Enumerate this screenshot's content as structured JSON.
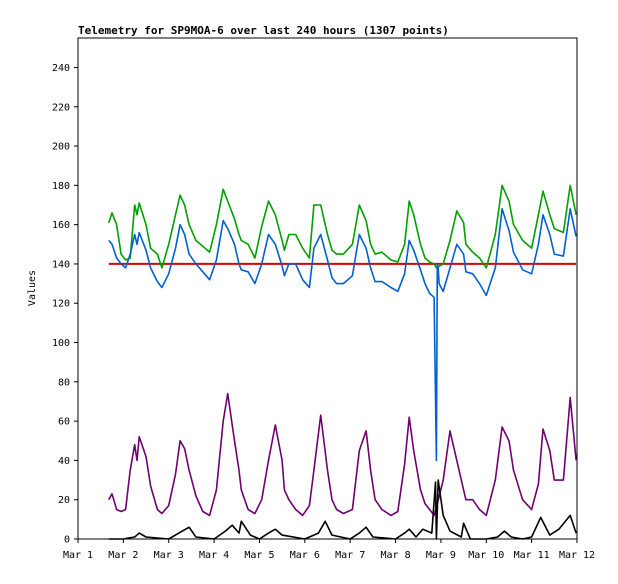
{
  "chart_data": {
    "type": "line",
    "title": "Telemetry for SP9MOA-6 over last 240 hours (1307 points)",
    "xlabel": "",
    "ylabel": "Values",
    "xlim": [
      0,
      11
    ],
    "ylim": [
      0,
      255
    ],
    "grid": false,
    "x_ticks": [
      {
        "x": 0,
        "label": "Mar 1"
      },
      {
        "x": 1,
        "label": "Mar 2"
      },
      {
        "x": 2,
        "label": "Mar 3"
      },
      {
        "x": 3,
        "label": "Mar 4"
      },
      {
        "x": 4,
        "label": "Mar 5"
      },
      {
        "x": 5,
        "label": "Mar 6"
      },
      {
        "x": 6,
        "label": "Mar 7"
      },
      {
        "x": 7,
        "label": "Mar 8"
      },
      {
        "x": 8,
        "label": "Mar 9"
      },
      {
        "x": 9,
        "label": "Mar 10"
      },
      {
        "x": 10,
        "label": "Mar 11"
      },
      {
        "x": 11,
        "label": "Mar 12"
      }
    ],
    "y_ticks": [
      0,
      20,
      40,
      60,
      80,
      100,
      120,
      140,
      160,
      180,
      200,
      220,
      240
    ],
    "series": [
      {
        "name": "red",
        "color": "#dd0000",
        "x": [
          0.68,
          1.0,
          2.0,
          3.0,
          4.0,
          5.0,
          6.0,
          7.0,
          8.0,
          9.0,
          10.0,
          10.98
        ],
        "y": [
          140,
          140,
          140,
          140,
          140,
          140,
          140,
          140,
          140,
          140,
          140,
          140
        ]
      },
      {
        "name": "green",
        "color": "#00a000",
        "x": [
          0.68,
          0.75,
          0.85,
          0.95,
          1.05,
          1.15,
          1.25,
          1.3,
          1.35,
          1.5,
          1.6,
          1.75,
          1.85,
          2.0,
          2.15,
          2.25,
          2.35,
          2.45,
          2.6,
          2.75,
          2.9,
          3.05,
          3.2,
          3.3,
          3.45,
          3.55,
          3.6,
          3.75,
          3.9,
          4.05,
          4.2,
          4.35,
          4.5,
          4.55,
          4.65,
          4.8,
          4.95,
          5.1,
          5.2,
          5.35,
          5.5,
          5.6,
          5.7,
          5.85,
          6.05,
          6.2,
          6.35,
          6.45,
          6.55,
          6.7,
          6.9,
          7.05,
          7.2,
          7.3,
          7.4,
          7.55,
          7.65,
          7.75,
          7.85,
          7.9,
          8.05,
          8.2,
          8.35,
          8.5,
          8.55,
          8.7,
          8.85,
          9.0,
          9.2,
          9.35,
          9.5,
          9.6,
          9.8,
          10.0,
          10.15,
          10.25,
          10.4,
          10.5,
          10.7,
          10.85,
          10.98
        ],
        "y": [
          161,
          166,
          160,
          145,
          142,
          143,
          170,
          165,
          171,
          160,
          148,
          145,
          138,
          150,
          165,
          175,
          170,
          160,
          152,
          149,
          146,
          160,
          178,
          172,
          163,
          155,
          152,
          150,
          143,
          159,
          172,
          165,
          152,
          147,
          155,
          155,
          148,
          143,
          170,
          170,
          155,
          147,
          145,
          145,
          150,
          170,
          162,
          150,
          145,
          146,
          142,
          141,
          150,
          172,
          165,
          150,
          143,
          141,
          140,
          138,
          140,
          152,
          167,
          161,
          150,
          146,
          143,
          138,
          155,
          180,
          172,
          160,
          152,
          148,
          165,
          177,
          165,
          158,
          156,
          180,
          165
        ]
      },
      {
        "name": "blue",
        "color": "#0060d0",
        "x": [
          0.68,
          0.75,
          0.85,
          0.95,
          1.05,
          1.15,
          1.25,
          1.3,
          1.35,
          1.5,
          1.6,
          1.75,
          1.85,
          2.0,
          2.15,
          2.25,
          2.35,
          2.45,
          2.6,
          2.75,
          2.9,
          3.05,
          3.2,
          3.3,
          3.45,
          3.55,
          3.6,
          3.75,
          3.9,
          4.05,
          4.2,
          4.35,
          4.5,
          4.55,
          4.65,
          4.8,
          4.95,
          5.1,
          5.2,
          5.35,
          5.5,
          5.6,
          5.7,
          5.85,
          6.05,
          6.2,
          6.35,
          6.45,
          6.55,
          6.7,
          6.9,
          7.05,
          7.2,
          7.3,
          7.4,
          7.55,
          7.65,
          7.75,
          7.85,
          7.9,
          7.92,
          7.94,
          7.96,
          8.05,
          8.2,
          8.35,
          8.5,
          8.55,
          8.7,
          8.85,
          9.0,
          9.2,
          9.35,
          9.5,
          9.6,
          9.8,
          10.0,
          10.15,
          10.25,
          10.4,
          10.5,
          10.7,
          10.85,
          10.98
        ],
        "y": [
          152,
          150,
          143,
          140,
          138,
          145,
          155,
          150,
          156,
          147,
          138,
          131,
          128,
          135,
          148,
          160,
          155,
          145,
          140,
          136,
          132,
          142,
          162,
          158,
          150,
          140,
          137,
          136,
          130,
          140,
          155,
          150,
          139,
          134,
          140,
          140,
          132,
          128,
          148,
          155,
          142,
          133,
          130,
          130,
          134,
          155,
          148,
          138,
          131,
          131,
          128,
          126,
          135,
          152,
          147,
          137,
          130,
          125,
          123,
          40,
          140,
          138,
          130,
          126,
          138,
          150,
          145,
          136,
          135,
          130,
          124,
          138,
          168,
          157,
          146,
          137,
          135,
          150,
          165,
          155,
          145,
          144,
          168,
          154
        ]
      },
      {
        "name": "purple",
        "color": "#700070",
        "x": [
          0.68,
          0.75,
          0.85,
          0.95,
          1.05,
          1.15,
          1.25,
          1.3,
          1.35,
          1.5,
          1.6,
          1.75,
          1.85,
          2.0,
          2.15,
          2.25,
          2.35,
          2.45,
          2.6,
          2.75,
          2.9,
          3.05,
          3.2,
          3.3,
          3.45,
          3.55,
          3.6,
          3.75,
          3.9,
          4.05,
          4.2,
          4.35,
          4.5,
          4.55,
          4.65,
          4.8,
          4.95,
          5.1,
          5.2,
          5.35,
          5.5,
          5.6,
          5.7,
          5.85,
          6.05,
          6.2,
          6.35,
          6.45,
          6.55,
          6.7,
          6.9,
          7.05,
          7.2,
          7.3,
          7.4,
          7.55,
          7.65,
          7.75,
          7.85,
          7.9,
          8.05,
          8.2,
          8.35,
          8.5,
          8.55,
          8.7,
          8.85,
          9.0,
          9.2,
          9.35,
          9.5,
          9.6,
          9.8,
          10.0,
          10.15,
          10.25,
          10.4,
          10.5,
          10.7,
          10.85,
          10.98
        ],
        "y": [
          20,
          23,
          15,
          14,
          15,
          35,
          48,
          40,
          52,
          42,
          27,
          15,
          13,
          17,
          33,
          50,
          46,
          35,
          22,
          14,
          12,
          25,
          60,
          74,
          50,
          35,
          25,
          15,
          13,
          20,
          40,
          58,
          40,
          25,
          20,
          15,
          12,
          17,
          35,
          63,
          35,
          20,
          15,
          13,
          15,
          45,
          55,
          35,
          20,
          15,
          12,
          14,
          38,
          62,
          45,
          25,
          18,
          15,
          12,
          16,
          30,
          55,
          40,
          25,
          20,
          20,
          15,
          12,
          30,
          57,
          50,
          35,
          20,
          15,
          28,
          56,
          45,
          30,
          30,
          72,
          40
        ]
      },
      {
        "name": "black",
        "color": "#000000",
        "x": [
          0.68,
          1.0,
          1.25,
          1.35,
          1.5,
          2.0,
          2.3,
          2.45,
          2.6,
          3.0,
          3.25,
          3.4,
          3.55,
          3.6,
          3.8,
          4.0,
          4.2,
          4.35,
          4.5,
          5.0,
          5.3,
          5.45,
          5.6,
          6.0,
          6.2,
          6.35,
          6.5,
          7.0,
          7.2,
          7.3,
          7.45,
          7.6,
          7.8,
          7.88,
          7.9,
          7.94,
          8.05,
          8.2,
          8.45,
          8.5,
          8.65,
          9.0,
          9.25,
          9.4,
          9.55,
          9.8,
          10.0,
          10.2,
          10.4,
          10.6,
          10.85,
          10.98
        ],
        "y": [
          0,
          0,
          1,
          3,
          1,
          0,
          4,
          6,
          1,
          0,
          4,
          7,
          3,
          9,
          2,
          0,
          3,
          5,
          2,
          0,
          3,
          9,
          2,
          0,
          3,
          6,
          1,
          0,
          3,
          5,
          1,
          5,
          3,
          29,
          0,
          30,
          12,
          4,
          1,
          8,
          0,
          0,
          1,
          4,
          1,
          0,
          1,
          11,
          2,
          5,
          12,
          3
        ]
      }
    ]
  }
}
